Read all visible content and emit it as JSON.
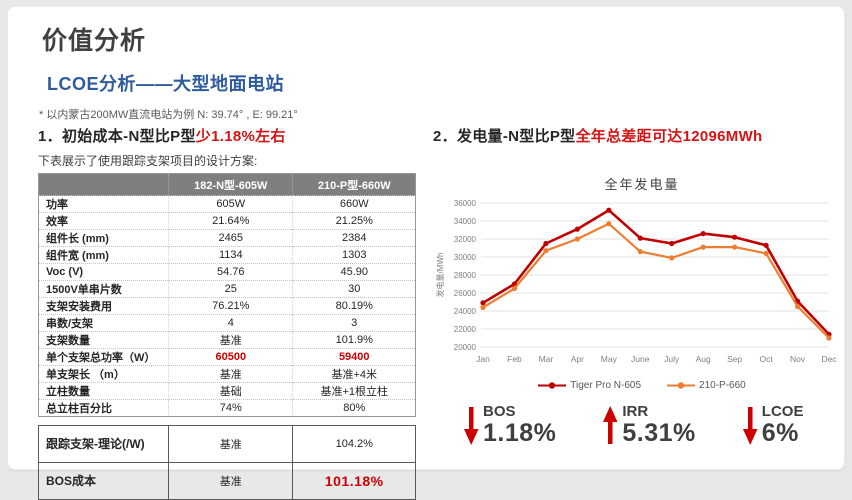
{
  "header": {
    "title": "价值分析",
    "subtitle": "LCOE分析——大型地面电站",
    "note": "* 以内蒙古200MW直流电站为例 N: 39.74° , E: 99.21°"
  },
  "left": {
    "heading_prefix": "1．初始成本-N型比P型",
    "heading_highlight": "少1.18%左右",
    "table_intro": "下表展示了使用跟踪支架项目的设计方案:",
    "table": {
      "headers": [
        "",
        "182-N型-605W",
        "210-P型-660W"
      ],
      "rows": [
        {
          "label": "功率",
          "n": "605W",
          "p": "660W"
        },
        {
          "label": "效率",
          "n": "21.64%",
          "p": "21.25%"
        },
        {
          "label": "组件长 (mm)",
          "n": "2465",
          "p": "2384"
        },
        {
          "label": "组件宽 (mm)",
          "n": "1134",
          "p": "1303"
        },
        {
          "label": "Voc (V)",
          "n": "54.76",
          "p": "45.90"
        },
        {
          "label": "1500V单串片数",
          "n": "25",
          "p": "30"
        },
        {
          "label": "支架安装费用",
          "n": "76.21%",
          "p": "80.19%"
        },
        {
          "label": "串数/支架",
          "n": "4",
          "p": "3"
        },
        {
          "label": "支架数量",
          "n": "基准",
          "p": "101.9%"
        },
        {
          "label": "单个支架总功率（W）",
          "n": "60500",
          "p": "59400",
          "highlight": true
        },
        {
          "label": "单支架长 （m）",
          "n": "基准",
          "p": "基准+4米"
        },
        {
          "label": "立柱数量",
          "n": "基础",
          "p": "基准+1根立柱"
        },
        {
          "label": "总立柱百分比",
          "n": "74%",
          "p": "80%"
        }
      ]
    },
    "summary_table": {
      "rows": [
        {
          "label": "跟踪支架-理论(/W)",
          "n": "基准",
          "p": "104.2%",
          "p_red": false
        },
        {
          "label": "BOS成本",
          "n": "基准",
          "p": "101.18%",
          "p_red": true
        }
      ]
    }
  },
  "right": {
    "heading_prefix": "2．发电量-N型比P型",
    "heading_highlight": "全年总差距可达12096MWh",
    "kpis": [
      {
        "arrow": "down",
        "label": "BOS",
        "value": "1.18%"
      },
      {
        "arrow": "up",
        "label": "IRR",
        "value": "5.31%"
      },
      {
        "arrow": "down",
        "label": "LCOE",
        "value": "6%"
      }
    ]
  },
  "chart_data": {
    "type": "line",
    "title": "全年发电量",
    "ylabel": "发电量/MWh",
    "categories": [
      "Jan",
      "Feb",
      "Mar",
      "Apr",
      "May",
      "June",
      "July",
      "Aug",
      "Sep",
      "Oct",
      "Nov",
      "Dec"
    ],
    "series": [
      {
        "name": "Tiger Pro N-605",
        "color": "#c00000",
        "values": [
          24900,
          27000,
          31500,
          33100,
          35200,
          32100,
          31500,
          32600,
          32200,
          31300,
          25100,
          21400
        ]
      },
      {
        "name": "210-P-660",
        "color": "#ed7d31",
        "values": [
          24400,
          26500,
          30700,
          32000,
          33700,
          30600,
          29900,
          31100,
          31100,
          30400,
          24500,
          21000
        ]
      }
    ],
    "ylim": [
      20000,
      36000
    ],
    "ytick_step": 2000,
    "grid": true,
    "legend_position": "bottom"
  },
  "colors": {
    "accent_red": "#cc0000",
    "heading_red": "#d41414",
    "accent_blue": "#2e5b9e",
    "table_header_gray": "#7f7f7f",
    "series_red": "#c00000",
    "series_orange": "#ed7d31"
  }
}
